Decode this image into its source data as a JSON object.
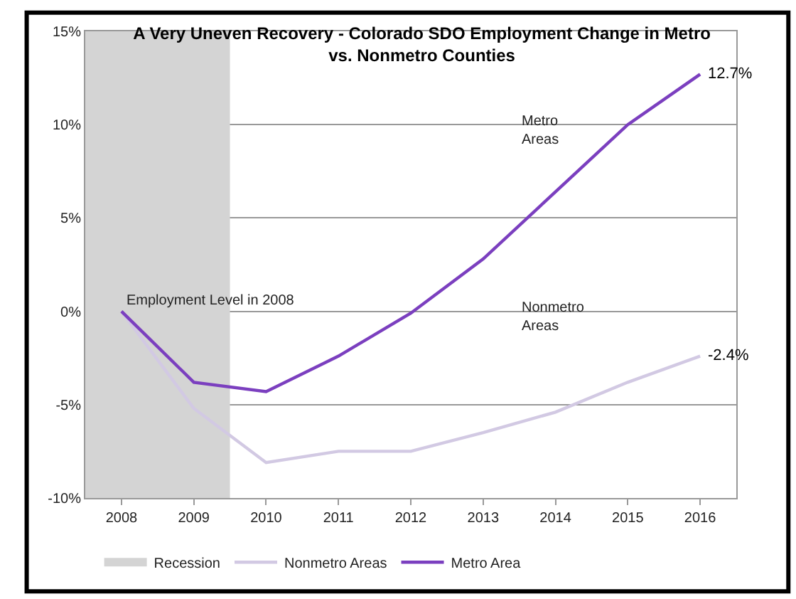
{
  "chart_data": {
    "type": "line",
    "title": "A Very Uneven Recovery - Colorado SDO Employment Change in Metro vs. Nonmetro Counties",
    "x": [
      2008,
      2009,
      2010,
      2011,
      2012,
      2013,
      2014,
      2015,
      2016
    ],
    "series": [
      {
        "name": "Nonmetro Areas",
        "color": "#d2c9e3",
        "values": [
          0,
          -5.2,
          -8.1,
          -7.5,
          -7.5,
          -6.5,
          -5.4,
          -3.8,
          -2.4
        ],
        "value_labels": [
          null,
          null,
          null,
          null,
          null,
          null,
          null,
          null,
          "-2.4%"
        ]
      },
      {
        "name": "Metro Area",
        "color": "#7b3fbf",
        "values": [
          0,
          -3.8,
          -4.3,
          -2.4,
          -0.1,
          2.8,
          6.4,
          10.0,
          12.7
        ],
        "value_labels": [
          null,
          null,
          null,
          null,
          null,
          null,
          null,
          null,
          "12.7%"
        ]
      }
    ],
    "bands": [
      {
        "axis": "x",
        "from": 2007.5,
        "to": 2009.5,
        "label": "Recession",
        "color": "#d4d4d4"
      }
    ],
    "annotations": [
      "Employment Level in 2008",
      "Metro Areas",
      "Nonmetro Areas"
    ],
    "xlim": [
      2007.5,
      2016.5
    ],
    "xticks": [
      2008,
      2009,
      2010,
      2011,
      2012,
      2013,
      2014,
      2015,
      2016
    ],
    "ylim": [
      -10,
      15
    ],
    "yticks": [
      {
        "value": -10,
        "label": "-10%"
      },
      {
        "value": -5,
        "label": "-5%"
      },
      {
        "value": 0,
        "label": "0%"
      },
      {
        "value": 5,
        "label": "5%"
      },
      {
        "value": 10,
        "label": "10%"
      },
      {
        "value": 15,
        "label": "15%"
      }
    ],
    "grid": "y",
    "legend": "bottom",
    "marker": "none",
    "line_style": "solid"
  }
}
